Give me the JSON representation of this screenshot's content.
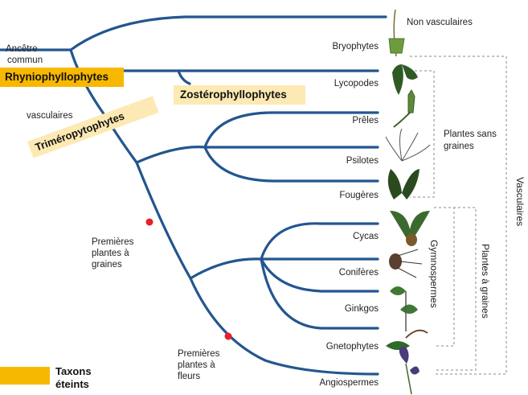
{
  "ancestor": {
    "line1": "Ancêtre",
    "line2": "commun"
  },
  "vasculaires_partial": "vasculaires",
  "taxa": [
    "Non vasculaires",
    "Bryophytes",
    "Lycopodes",
    "Prêles",
    "Psilotes",
    "Fougères",
    "Cycas",
    "Conifères",
    "Ginkgos",
    "Gnetophytes",
    "Angiospermes"
  ],
  "groups": {
    "plantes_sans_graines": [
      "Plantes sans",
      "graines"
    ],
    "gymnospermes": "Gymnospermes",
    "plantes_a_graines": "Plantes à graines",
    "vasculaires": "Vasculaires"
  },
  "events": {
    "seeds": [
      "Premières",
      "plantes à",
      "graines"
    ],
    "flowers": [
      "Premières",
      "plantes à",
      "fleurs"
    ]
  },
  "extinct_taxa": {
    "rhynio": "Rhyniophyllophytes",
    "zostero": "Zostérophyllophytes",
    "trimero": "Triméropytophytes"
  },
  "legend": {
    "line1": "Taxons",
    "line2": "éteints"
  },
  "colors": {
    "branch": "#23568f",
    "node": "#e8202a",
    "extinct_highlight": "#f7b800",
    "extinct_highlight_pale": "#fde9b3",
    "bracket": "#888888"
  },
  "icons": [
    "moss-icon",
    "lycopod-icon",
    "horsetail-icon",
    "psilotum-icon",
    "fern-icon",
    "cycad-icon",
    "conifer-icon",
    "ginkgo-icon",
    "gnetophyte-icon",
    "iris-flower-icon"
  ]
}
